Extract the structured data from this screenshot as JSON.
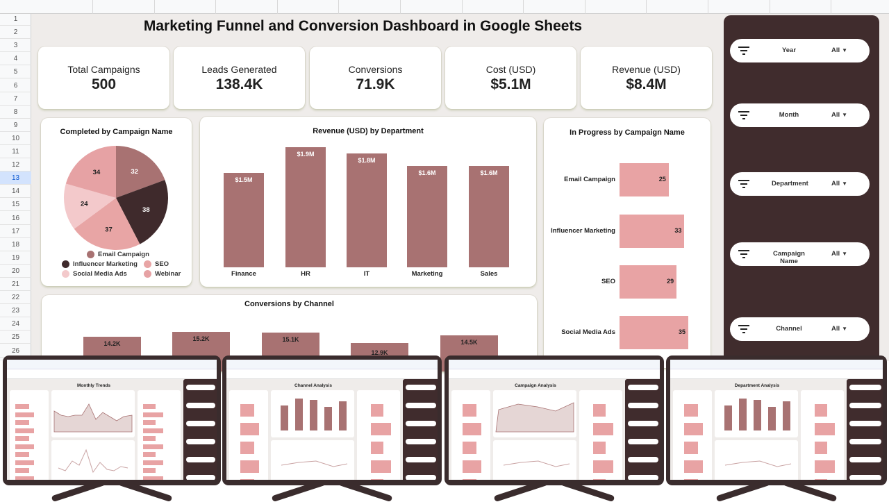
{
  "sheet": {
    "row_numbers": [
      "1",
      "2",
      "3",
      "4",
      "5",
      "6",
      "7",
      "8",
      "9",
      "10",
      "11",
      "12",
      "13",
      "14",
      "15",
      "16",
      "17",
      "18",
      "19",
      "20",
      "21",
      "22",
      "23",
      "24",
      "25",
      "26"
    ],
    "selected_row": "13"
  },
  "dashboard": {
    "title": "Marketing Funnel and Conversion Dashboard in Google Sheets",
    "kpis": [
      {
        "label": "Total Campaigns",
        "value": "500"
      },
      {
        "label": "Leads Generated",
        "value": "138.4K"
      },
      {
        "label": "Conversions",
        "value": "71.9K"
      },
      {
        "label": "Cost (USD)",
        "value": "$5.1M"
      },
      {
        "label": "Revenue (USD)",
        "value": "$8.4M"
      }
    ],
    "filters": [
      {
        "label": "Year",
        "value": "All"
      },
      {
        "label": "Month",
        "value": "All"
      },
      {
        "label": "Department",
        "value": "All"
      },
      {
        "label": "Campaign Name",
        "value": "All"
      },
      {
        "label": "Channel",
        "value": "All"
      }
    ],
    "icons": {
      "filter": "filter-icon",
      "dropdown": "caret-down-icon"
    }
  },
  "colors": {
    "rose": "#a87272",
    "dark": "#402c2d",
    "pink": "#e8a3a4",
    "light_pink": "#f3c9cb",
    "background": "#efecea"
  },
  "chart_data": [
    {
      "type": "pie",
      "title": "Completed by Campaign Name",
      "legend": "bottom",
      "slices": [
        {
          "name": "Email Campaign",
          "value": 32,
          "color": "#a87272"
        },
        {
          "name": "Influencer Marketing",
          "value": 38,
          "color": "#3f2a2c"
        },
        {
          "name": "SEO",
          "value": 37,
          "color": "#e8a5a5"
        },
        {
          "name": "Social Media Ads",
          "value": 24,
          "color": "#f3c9cb"
        },
        {
          "name": "Webinar",
          "value": 34,
          "color": "#e6a2a4"
        }
      ]
    },
    {
      "type": "bar",
      "title": "Revenue (USD) by Department",
      "categories": [
        "Finance",
        "HR",
        "IT",
        "Marketing",
        "Sales"
      ],
      "values": [
        1.5,
        1.9,
        1.8,
        1.6,
        1.6
      ],
      "labels": [
        "$1.5M",
        "$1.9M",
        "$1.8M",
        "$1.6M",
        "$1.6M"
      ],
      "ylim": [
        0,
        2.0
      ],
      "unit": "M USD"
    },
    {
      "type": "bar",
      "orientation": "horizontal",
      "title": "In Progress by Campaign Name",
      "categories": [
        "Email Campaign",
        "Influencer Marketing",
        "SEO",
        "Social Media Ads"
      ],
      "values": [
        25,
        33,
        29,
        35
      ]
    },
    {
      "type": "bar",
      "title": "Conversions by Channel",
      "values": [
        14.2,
        15.2,
        15.1,
        12.9,
        14.5
      ],
      "labels": [
        "14.2K",
        "15.2K",
        "15.1K",
        "12.9K",
        "14.5K"
      ],
      "unit": "K"
    }
  ],
  "previews": [
    {
      "title": "Monthly Trends"
    },
    {
      "title": "Channel Analysis"
    },
    {
      "title": "Campaign Analysis"
    },
    {
      "title": "Department Analysis"
    }
  ]
}
